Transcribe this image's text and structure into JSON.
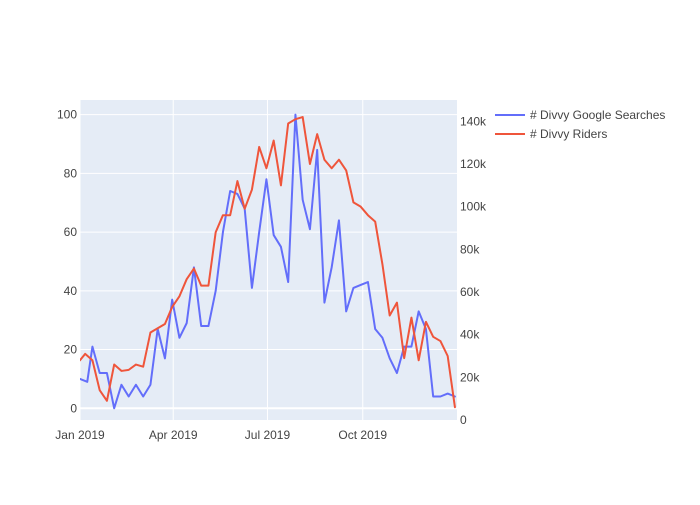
{
  "chart_data": {
    "type": "line",
    "title": "",
    "xlabel": "",
    "ylabel": "",
    "y2label": "",
    "x_ticks": [
      {
        "date": "2019-01-01",
        "label": "Jan 2019"
      },
      {
        "date": "2019-04-01",
        "label": "Apr 2019"
      },
      {
        "date": "2019-07-01",
        "label": "Jul 2019"
      },
      {
        "date": "2019-10-01",
        "label": "Oct 2019"
      }
    ],
    "xlim": [
      "2019-01-01",
      "2019-12-31"
    ],
    "y_left": {
      "ylim": [
        -4,
        105
      ],
      "ticks": [
        0,
        20,
        40,
        60,
        80,
        100
      ],
      "tick_labels": [
        "0",
        "20",
        "40",
        "60",
        "80",
        "100"
      ]
    },
    "y_right": {
      "ylim": [
        0,
        150000
      ],
      "ticks": [
        0,
        20000,
        40000,
        60000,
        80000,
        100000,
        120000,
        140000
      ],
      "tick_labels": [
        "0",
        "20k",
        "40k",
        "60k",
        "80k",
        "100k",
        "120k",
        "140k"
      ]
    },
    "grid": true,
    "legend_position": "top-right",
    "colors": {
      "plot_bg": "#e5ecf6",
      "grid": "#ffffff",
      "axis_text": "#444444",
      "searches": "#636efa",
      "riders": "#ef553b"
    },
    "series": [
      {
        "name": "# Divvy Google Searches",
        "axis": "left",
        "color": "#636efa",
        "x": [
          "2019-01-01",
          "2019-01-08",
          "2019-01-13",
          "2019-01-20",
          "2019-01-27",
          "2019-02-03",
          "2019-02-10",
          "2019-02-17",
          "2019-02-24",
          "2019-03-03",
          "2019-03-10",
          "2019-03-17",
          "2019-03-24",
          "2019-03-31",
          "2019-04-07",
          "2019-04-14",
          "2019-04-21",
          "2019-04-28",
          "2019-05-05",
          "2019-05-12",
          "2019-05-19",
          "2019-05-26",
          "2019-06-02",
          "2019-06-09",
          "2019-06-16",
          "2019-06-23",
          "2019-06-30",
          "2019-07-07",
          "2019-07-14",
          "2019-07-21",
          "2019-07-28",
          "2019-08-04",
          "2019-08-11",
          "2019-08-18",
          "2019-08-25",
          "2019-09-01",
          "2019-09-08",
          "2019-09-15",
          "2019-09-22",
          "2019-09-29",
          "2019-10-06",
          "2019-10-13",
          "2019-10-20",
          "2019-10-27",
          "2019-11-03",
          "2019-11-10",
          "2019-11-17",
          "2019-11-24",
          "2019-12-01",
          "2019-12-08",
          "2019-12-15",
          "2019-12-22",
          "2019-12-29"
        ],
        "values": [
          10,
          9,
          21,
          12,
          12,
          0,
          8,
          4,
          8,
          4,
          8,
          27,
          17,
          37,
          24,
          29,
          48,
          28,
          28,
          40,
          60,
          74,
          73,
          68,
          41,
          60,
          78,
          59,
          55,
          43,
          100,
          71,
          61,
          88,
          36,
          48,
          64,
          33,
          41,
          42,
          43,
          27,
          24,
          17,
          12,
          21,
          21,
          33,
          27,
          4,
          4,
          5,
          4
        ]
      },
      {
        "name": "# Divvy Riders",
        "axis": "right",
        "color": "#ef553b",
        "x": [
          "2019-01-01",
          "2019-01-06",
          "2019-01-13",
          "2019-01-20",
          "2019-01-27",
          "2019-02-03",
          "2019-02-10",
          "2019-02-17",
          "2019-02-24",
          "2019-03-03",
          "2019-03-10",
          "2019-03-17",
          "2019-03-24",
          "2019-03-31",
          "2019-04-07",
          "2019-04-14",
          "2019-04-21",
          "2019-04-28",
          "2019-05-05",
          "2019-05-12",
          "2019-05-19",
          "2019-05-26",
          "2019-06-02",
          "2019-06-09",
          "2019-06-16",
          "2019-06-23",
          "2019-06-30",
          "2019-07-07",
          "2019-07-14",
          "2019-07-21",
          "2019-07-28",
          "2019-08-04",
          "2019-08-11",
          "2019-08-18",
          "2019-08-25",
          "2019-09-01",
          "2019-09-08",
          "2019-09-15",
          "2019-09-22",
          "2019-09-29",
          "2019-10-06",
          "2019-10-13",
          "2019-10-20",
          "2019-10-27",
          "2019-11-03",
          "2019-11-10",
          "2019-11-17",
          "2019-11-24",
          "2019-12-01",
          "2019-12-08",
          "2019-12-15",
          "2019-12-22",
          "2019-12-29"
        ],
        "values": [
          28000,
          31000,
          28000,
          14000,
          9000,
          26000,
          23000,
          23500,
          26000,
          25000,
          41000,
          43000,
          45000,
          53000,
          58000,
          66000,
          71000,
          63000,
          63000,
          88000,
          96000,
          96000,
          112000,
          99000,
          108000,
          128000,
          118000,
          131000,
          110000,
          139000,
          141000,
          142000,
          120000,
          134000,
          122000,
          118000,
          122000,
          117000,
          102000,
          100000,
          96000,
          93000,
          73000,
          49000,
          55000,
          29000,
          48000,
          28000,
          46000,
          39000,
          37000,
          30000,
          6000
        ]
      }
    ]
  }
}
